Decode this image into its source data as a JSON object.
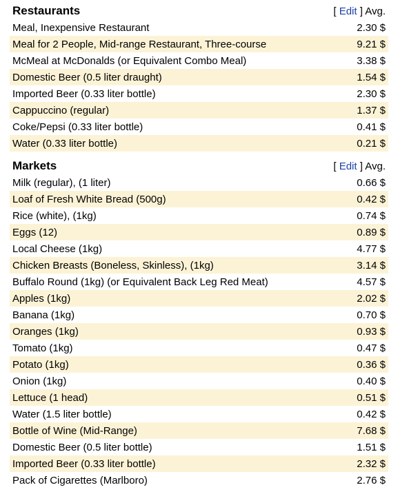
{
  "sections": [
    {
      "title": "Restaurants",
      "edit_open": "[",
      "edit": "Edit",
      "edit_close": "]",
      "avg": "Avg.",
      "rows": [
        [
          "Meal, Inexpensive Restaurant",
          "2.30 $"
        ],
        [
          "Meal for 2 People, Mid-range Restaurant, Three-course",
          "9.21 $"
        ],
        [
          "McMeal at McDonalds (or Equivalent Combo Meal)",
          "3.38 $"
        ],
        [
          "Domestic Beer (0.5 liter draught)",
          "1.54 $"
        ],
        [
          "Imported Beer (0.33 liter bottle)",
          "2.30 $"
        ],
        [
          "Cappuccino (regular)",
          "1.37 $"
        ],
        [
          "Coke/Pepsi (0.33 liter bottle)",
          "0.41 $"
        ],
        [
          "Water (0.33 liter bottle)",
          "0.21 $"
        ]
      ]
    },
    {
      "title": "Markets",
      "edit_open": "[",
      "edit": "Edit",
      "edit_close": "]",
      "avg": "Avg.",
      "rows": [
        [
          "Milk (regular), (1 liter)",
          "0.66 $"
        ],
        [
          "Loaf of Fresh White Bread (500g)",
          "0.42 $"
        ],
        [
          "Rice (white), (1kg)",
          "0.74 $"
        ],
        [
          "Eggs (12)",
          "0.89 $"
        ],
        [
          "Local Cheese (1kg)",
          "4.77 $"
        ],
        [
          "Chicken Breasts (Boneless, Skinless), (1kg)",
          "3.14 $"
        ],
        [
          "Buffalo Round (1kg) (or Equivalent Back Leg Red Meat)",
          "4.57 $"
        ],
        [
          "Apples (1kg)",
          "2.02 $"
        ],
        [
          "Banana (1kg)",
          "0.70 $"
        ],
        [
          "Oranges (1kg)",
          "0.93 $"
        ],
        [
          "Tomato (1kg)",
          "0.47 $"
        ],
        [
          "Potato (1kg)",
          "0.36 $"
        ],
        [
          "Onion (1kg)",
          "0.40 $"
        ],
        [
          "Lettuce (1 head)",
          "0.51 $"
        ],
        [
          "Water (1.5 liter bottle)",
          "0.42 $"
        ],
        [
          "Bottle of Wine (Mid-Range)",
          "7.68 $"
        ],
        [
          "Domestic Beer (0.5 liter bottle)",
          "1.51 $"
        ],
        [
          "Imported Beer (0.33 liter bottle)",
          "2.32 $"
        ],
        [
          "Pack of Cigarettes (Marlboro)",
          "2.76 $"
        ]
      ]
    }
  ]
}
